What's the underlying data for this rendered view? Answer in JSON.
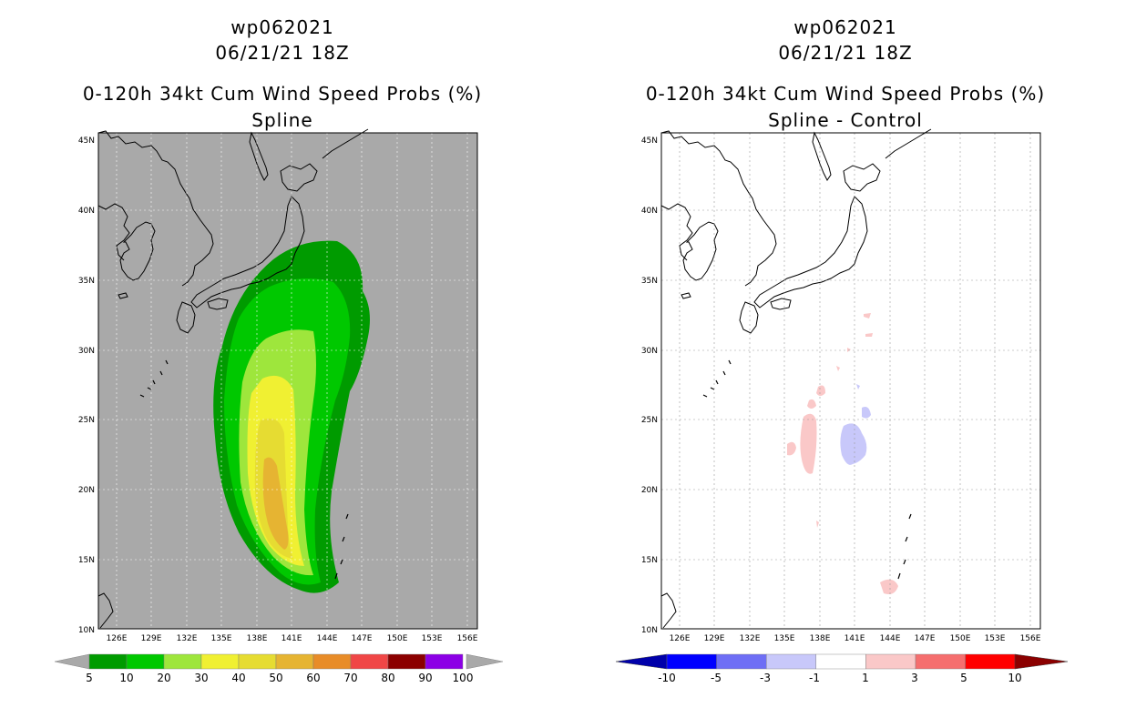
{
  "left_panel": {
    "storm_id": "wp062021",
    "datetime": "06/21/21 18Z",
    "product": "0-120h 34kt Cum Wind Speed Probs (%)",
    "subtitle": "Spline",
    "colorbar": {
      "labels": [
        "5",
        "10",
        "20",
        "30",
        "40",
        "50",
        "60",
        "70",
        "80",
        "90",
        "100"
      ],
      "colors": [
        "#009b00",
        "#00c800",
        "#9ee63c",
        "#f0f032",
        "#e6dc32",
        "#e6b432",
        "#e88c28",
        "#f04646",
        "#8b0000",
        "#8c00e6",
        "#aaaaaa"
      ]
    }
  },
  "right_panel": {
    "storm_id": "wp062021",
    "datetime": "06/21/21 18Z",
    "product": "0-120h 34kt Cum Wind Speed Probs (%)",
    "subtitle": "Spline - Control",
    "colorbar": {
      "labels": [
        "-10",
        "-5",
        "-3",
        "-1",
        "1",
        "3",
        "5",
        "10"
      ],
      "colors": [
        "#0000aa",
        "#0000ff",
        "#6e6ef5",
        "#c8c8fa",
        "#ffffff",
        "#fac8c8",
        "#f56e6e",
        "#ff0000",
        "#8b0000"
      ]
    }
  },
  "map_axes": {
    "lat_labels": [
      "45N",
      "40N",
      "35N",
      "30N",
      "25N",
      "20N",
      "15N",
      "10N"
    ],
    "lon_labels": [
      "126E",
      "129E",
      "132E",
      "135E",
      "138E",
      "141E",
      "144E",
      "147E",
      "150E",
      "153E",
      "156E"
    ]
  },
  "colors": {
    "left_background": "#a9a9a9",
    "right_background": "#ffffff",
    "coastline": "#000000"
  }
}
